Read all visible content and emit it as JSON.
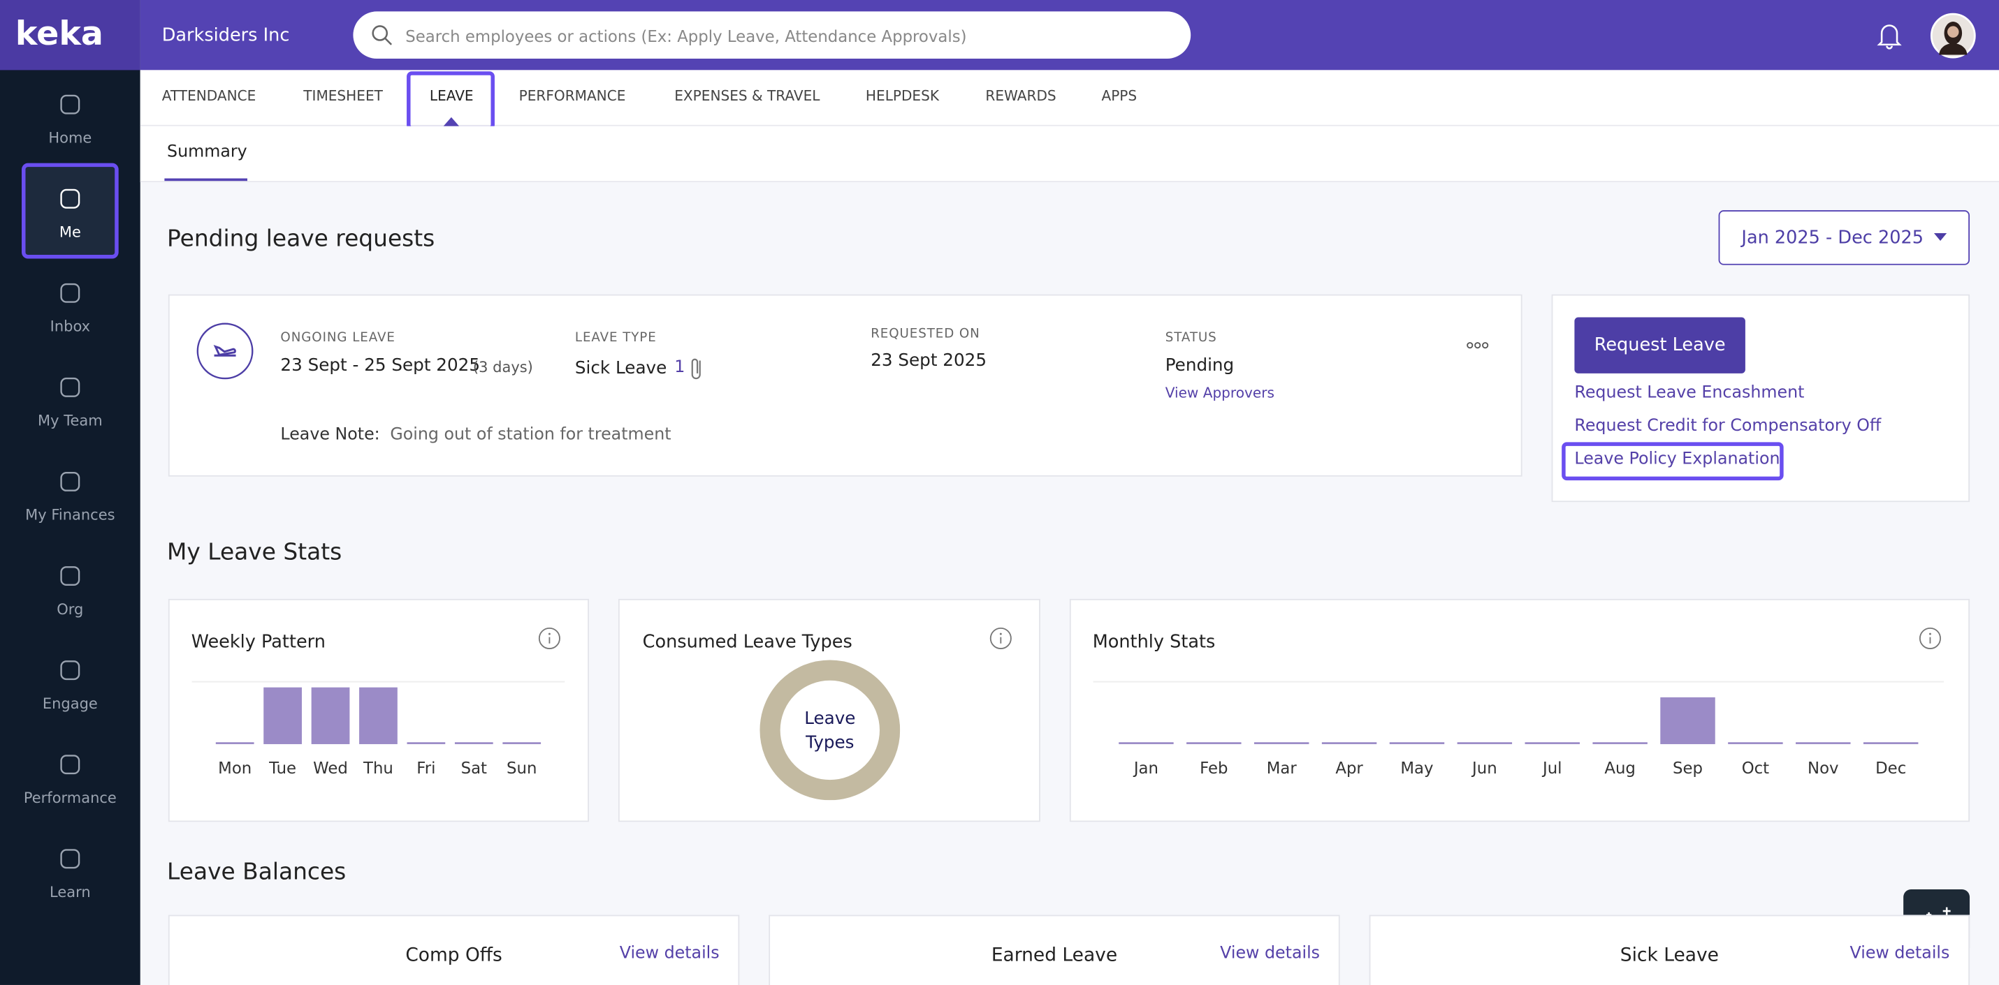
{
  "sidebar": {
    "logo": "keka",
    "items": [
      "Home",
      "Me",
      "Inbox",
      "My Team",
      "My Finances",
      "Org",
      "Engage",
      "Performance",
      "Learn"
    ]
  },
  "topbar": {
    "company": "Darksiders Inc",
    "search_placeholder": "Search employees or actions (Ex: Apply Leave, Attendance Approvals)"
  },
  "tabs": [
    "ATTENDANCE",
    "TIMESHEET",
    "LEAVE",
    "PERFORMANCE",
    "EXPENSES & TRAVEL",
    "HELPDESK",
    "REWARDS",
    "APPS"
  ],
  "subtabs": [
    "Summary"
  ],
  "pending": {
    "title": "Pending leave requests",
    "date_range": "Jan 2025 - Dec 2025",
    "request": {
      "ongoing_label": "ONGOING LEAVE",
      "dates": "23 Sept - 25 Sept 2025",
      "duration": "(3 days)",
      "type_label": "LEAVE TYPE",
      "type": "Sick Leave",
      "attachments": "1",
      "requested_label": "REQUESTED ON",
      "requested": "23 Sept 2025",
      "status_label": "STATUS",
      "status": "Pending",
      "view_approvers": "View Approvers",
      "note_label": "Leave Note:",
      "note": "Going out of station for treatment"
    }
  },
  "actions": {
    "button": "Request Leave",
    "links": [
      "Request Leave Encashment",
      "Request Credit for Compensatory Off",
      "Leave Policy Explanation"
    ]
  },
  "stats": {
    "title": "My Leave Stats",
    "weekly": {
      "type": "bar",
      "title": "Weekly Pattern",
      "categories": [
        "Mon",
        "Tue",
        "Wed",
        "Thu",
        "Fri",
        "Sat",
        "Sun"
      ],
      "values": [
        0,
        1,
        1,
        1,
        0,
        0,
        0
      ],
      "ylim": [
        0,
        1.1
      ],
      "color": "#9b8bc7"
    },
    "consumed": {
      "title": "Consumed Leave Types",
      "center": [
        "Leave",
        "Types"
      ]
    },
    "monthly": {
      "type": "bar",
      "title": "Monthly Stats",
      "categories": [
        "Jan",
        "Feb",
        "Mar",
        "Apr",
        "May",
        "Jun",
        "Jul",
        "Aug",
        "Sep",
        "Oct",
        "Nov",
        "Dec"
      ],
      "values": [
        0,
        0,
        0,
        0,
        0,
        0,
        0,
        0,
        3,
        0,
        0,
        0
      ],
      "ylim": [
        0,
        4
      ],
      "color": "#9b8bc7"
    }
  },
  "balances": {
    "title": "Leave Balances",
    "cards": [
      {
        "name": "Comp Offs",
        "link": "View details"
      },
      {
        "name": "Earned Leave",
        "link": "View details"
      },
      {
        "name": "Sick Leave",
        "link": "View details"
      }
    ]
  }
}
